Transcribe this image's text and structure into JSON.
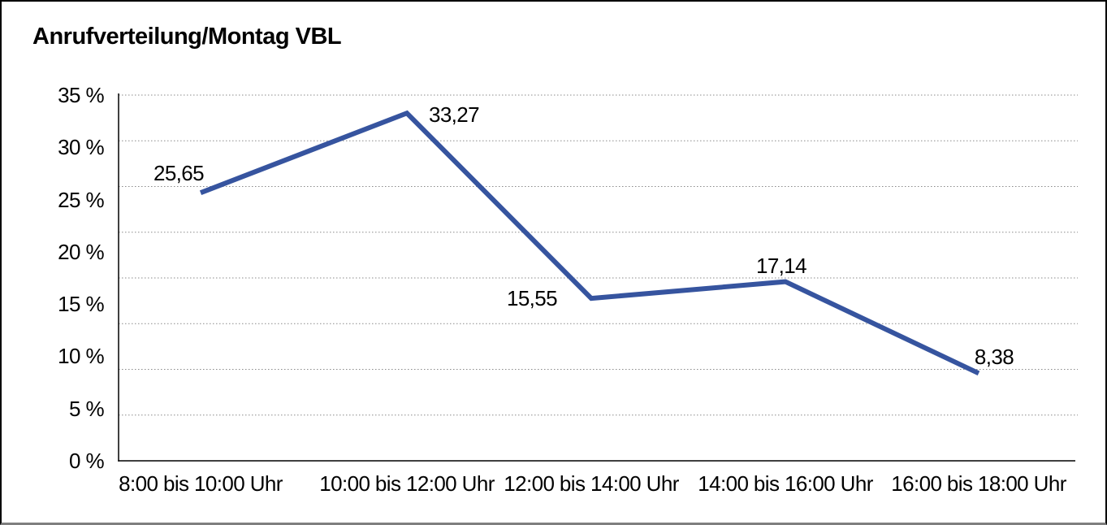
{
  "page": {
    "background": "#ffffff",
    "frame_border_color": "#000000",
    "frame_bottom_border_color": "#7f7f7f"
  },
  "chart_data": {
    "type": "line",
    "title": "Anrufverteilung/Montag VBL",
    "categories": [
      "8:00 bis 10:00 Uhr",
      "10:00 bis 12:00 Uhr",
      "12:00 bis 14:00 Uhr",
      "14:00 bis 16:00 Uhr",
      "16:00 bis 18:00 Uhr"
    ],
    "values": [
      25.65,
      33.27,
      15.55,
      17.14,
      8.38
    ],
    "value_labels": [
      "25,65",
      "33,27",
      "15,55",
      "17,14",
      "8,38"
    ],
    "yticks": [
      35,
      30,
      25,
      20,
      15,
      10,
      5,
      0
    ],
    "ytick_labels": [
      "35 %",
      "30 %",
      "25 %",
      "20 %",
      "15 %",
      "10 %",
      "5 %",
      "0 %"
    ],
    "ylim": [
      0,
      35
    ],
    "xlabel": "",
    "ylabel": "",
    "legend": "none",
    "grid": "horizontal-dotted",
    "grid_intervals": 8,
    "line_color": "#36549F",
    "axis_color": "#000000",
    "gridline_color": "#8a8a8a"
  }
}
